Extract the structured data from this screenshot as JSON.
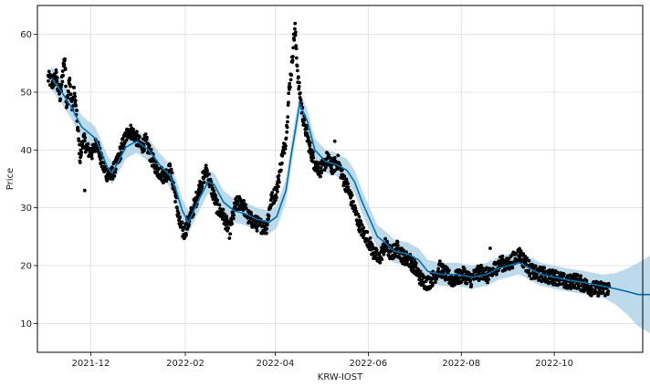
{
  "chart_data": {
    "type": "scatter",
    "xlabel": "KRW-IOST",
    "ylabel": "Price",
    "x_ticks": [
      "2021-12",
      "2022-02",
      "2022-04",
      "2022-06",
      "2022-08",
      "2022-10"
    ],
    "x_tick_dates": [
      "2021-12-01",
      "2022-02-01",
      "2022-04-01",
      "2022-06-01",
      "2022-08-01",
      "2022-10-01"
    ],
    "y_ticks": [
      10,
      20,
      30,
      40,
      50,
      60
    ],
    "xlim": [
      "2021-10-27",
      "2022-11-28"
    ],
    "ylim": [
      5,
      65
    ],
    "grid": true,
    "colors": {
      "actual": "#000000",
      "forecast": "#0072B2",
      "interval": "#A6CEE3"
    },
    "series": [
      {
        "kind": "forecast",
        "points": [
          [
            "2021-11-05",
            52.5
          ],
          [
            "2021-11-12",
            50.0
          ],
          [
            "2021-11-18",
            47.5
          ],
          [
            "2021-11-25",
            44.0
          ],
          [
            "2021-12-04",
            42.0
          ],
          [
            "2021-12-12",
            37.0
          ],
          [
            "2021-12-15",
            36.0
          ],
          [
            "2021-12-24",
            40.5
          ],
          [
            "2021-12-31",
            41.5
          ],
          [
            "2022-01-08",
            40.0
          ],
          [
            "2022-01-15",
            37.5
          ],
          [
            "2022-01-22",
            35.5
          ],
          [
            "2022-01-26",
            33.0
          ],
          [
            "2022-01-30",
            29.5
          ],
          [
            "2022-02-03",
            27.5
          ],
          [
            "2022-02-10",
            31.5
          ],
          [
            "2022-02-16",
            34.5
          ],
          [
            "2022-02-20",
            34.0
          ],
          [
            "2022-02-26",
            31.0
          ],
          [
            "2022-03-05",
            29.5
          ],
          [
            "2022-03-12",
            29.0
          ],
          [
            "2022-03-20",
            28.0
          ],
          [
            "2022-03-28",
            27.5
          ],
          [
            "2022-04-02",
            28.5
          ],
          [
            "2022-04-08",
            33.0
          ],
          [
            "2022-04-12",
            40.0
          ],
          [
            "2022-04-17",
            48.0
          ],
          [
            "2022-04-22",
            45.0
          ],
          [
            "2022-04-27",
            40.0
          ],
          [
            "2022-05-04",
            38.0
          ],
          [
            "2022-05-11",
            37.5
          ],
          [
            "2022-05-18",
            36.5
          ],
          [
            "2022-05-23",
            34.5
          ],
          [
            "2022-05-28",
            31.0
          ],
          [
            "2022-06-02",
            28.0
          ],
          [
            "2022-06-07",
            25.0
          ],
          [
            "2022-06-12",
            24.0
          ],
          [
            "2022-06-18",
            22.5
          ],
          [
            "2022-06-27",
            22.0
          ],
          [
            "2022-07-04",
            21.0
          ],
          [
            "2022-07-10",
            19.0
          ],
          [
            "2022-07-18",
            18.5
          ],
          [
            "2022-07-29",
            18.5
          ],
          [
            "2022-08-08",
            18.0
          ],
          [
            "2022-08-18",
            18.5
          ],
          [
            "2022-08-25",
            19.5
          ],
          [
            "2022-09-01",
            20.0
          ],
          [
            "2022-09-08",
            20.5
          ],
          [
            "2022-09-15",
            19.5
          ],
          [
            "2022-09-22",
            18.5
          ],
          [
            "2022-10-01",
            18.0
          ],
          [
            "2022-10-10",
            17.5
          ],
          [
            "2022-10-22",
            17.0
          ],
          [
            "2022-11-01",
            16.5
          ],
          [
            "2022-11-10",
            16.0
          ],
          [
            "2022-11-18",
            15.5
          ],
          [
            "2022-11-25",
            15.0
          ],
          [
            "2022-12-05",
            15.0
          ]
        ]
      },
      {
        "kind": "interval_width",
        "points": [
          [
            "2021-11-05",
            2.0
          ],
          [
            "2022-11-02",
            2.0
          ],
          [
            "2022-11-10",
            2.7
          ],
          [
            "2022-11-18",
            4.0
          ],
          [
            "2022-11-25",
            5.5
          ],
          [
            "2022-12-05",
            7.0
          ]
        ]
      },
      {
        "kind": "actual",
        "points": [
          [
            "2021-11-03",
            52.5
          ],
          [
            "2021-11-06",
            51.5
          ],
          [
            "2021-11-08",
            53.0
          ],
          [
            "2021-11-11",
            49.0
          ],
          [
            "2021-11-13",
            54.5
          ],
          [
            "2021-11-14",
            56.0
          ],
          [
            "2021-11-15",
            48.0
          ],
          [
            "2021-11-17",
            52.0
          ],
          [
            "2021-11-19",
            47.0
          ],
          [
            "2021-11-20",
            50.5
          ],
          [
            "2021-11-22",
            45.0
          ],
          [
            "2021-11-24",
            38.5
          ],
          [
            "2021-11-26",
            42.0
          ],
          [
            "2021-11-29",
            40.0
          ],
          [
            "2021-12-02",
            39.5
          ],
          [
            "2021-12-05",
            41.5
          ],
          [
            "2021-12-08",
            38.0
          ],
          [
            "2021-12-11",
            36.0
          ],
          [
            "2021-12-14",
            35.5
          ],
          [
            "2021-12-18",
            37.5
          ],
          [
            "2021-12-22",
            41.0
          ],
          [
            "2021-12-26",
            43.5
          ],
          [
            "2021-12-30",
            42.5
          ],
          [
            "2022-01-03",
            40.5
          ],
          [
            "2022-01-06",
            41.5
          ],
          [
            "2022-01-10",
            38.5
          ],
          [
            "2022-01-14",
            36.5
          ],
          [
            "2022-01-18",
            35.5
          ],
          [
            "2022-01-22",
            36.5
          ],
          [
            "2022-01-25",
            33.0
          ],
          [
            "2022-01-28",
            27.5
          ],
          [
            "2022-01-31",
            25.5
          ],
          [
            "2022-02-03",
            27.5
          ],
          [
            "2022-02-07",
            30.5
          ],
          [
            "2022-02-11",
            34.0
          ],
          [
            "2022-02-15",
            36.5
          ],
          [
            "2022-02-18",
            33.5
          ],
          [
            "2022-02-22",
            30.0
          ],
          [
            "2022-02-26",
            28.5
          ],
          [
            "2022-03-02",
            26.0
          ],
          [
            "2022-03-06",
            30.5
          ],
          [
            "2022-03-10",
            31.0
          ],
          [
            "2022-03-14",
            28.5
          ],
          [
            "2022-03-18",
            27.5
          ],
          [
            "2022-03-22",
            27.0
          ],
          [
            "2022-03-26",
            26.5
          ],
          [
            "2022-03-29",
            31.0
          ],
          [
            "2022-04-02",
            33.0
          ],
          [
            "2022-04-05",
            38.0
          ],
          [
            "2022-04-08",
            42.0
          ],
          [
            "2022-04-10",
            50.0
          ],
          [
            "2022-04-12",
            55.0
          ],
          [
            "2022-04-13",
            59.0
          ],
          [
            "2022-04-14",
            61.0
          ],
          [
            "2022-04-16",
            52.0
          ],
          [
            "2022-04-19",
            46.0
          ],
          [
            "2022-04-23",
            41.0
          ],
          [
            "2022-04-27",
            37.5
          ],
          [
            "2022-05-01",
            36.5
          ],
          [
            "2022-05-05",
            38.5
          ],
          [
            "2022-05-08",
            37.0
          ],
          [
            "2022-05-12",
            38.0
          ],
          [
            "2022-05-15",
            35.5
          ],
          [
            "2022-05-19",
            33.0
          ],
          [
            "2022-05-22",
            30.5
          ],
          [
            "2022-05-25",
            28.0
          ],
          [
            "2022-05-28",
            26.0
          ],
          [
            "2022-06-01",
            24.5
          ],
          [
            "2022-06-04",
            22.5
          ],
          [
            "2022-06-08",
            21.0
          ],
          [
            "2022-06-12",
            23.5
          ],
          [
            "2022-06-16",
            22.0
          ],
          [
            "2022-06-20",
            23.0
          ],
          [
            "2022-06-24",
            21.5
          ],
          [
            "2022-06-28",
            21.0
          ],
          [
            "2022-07-02",
            19.5
          ],
          [
            "2022-07-06",
            17.5
          ],
          [
            "2022-07-10",
            17.0
          ],
          [
            "2022-07-14",
            18.0
          ],
          [
            "2022-07-18",
            19.5
          ],
          [
            "2022-07-22",
            18.5
          ],
          [
            "2022-07-26",
            17.5
          ],
          [
            "2022-07-30",
            18.0
          ],
          [
            "2022-08-03",
            18.5
          ],
          [
            "2022-08-07",
            17.5
          ],
          [
            "2022-08-11",
            18.5
          ],
          [
            "2022-08-15",
            19.0
          ],
          [
            "2022-08-19",
            18.0
          ],
          [
            "2022-08-23",
            19.5
          ],
          [
            "2022-08-27",
            20.5
          ],
          [
            "2022-08-31",
            20.0
          ],
          [
            "2022-09-04",
            21.0
          ],
          [
            "2022-09-08",
            22.0
          ],
          [
            "2022-09-12",
            20.5
          ],
          [
            "2022-09-16",
            19.0
          ],
          [
            "2022-09-20",
            18.5
          ],
          [
            "2022-09-24",
            18.5
          ],
          [
            "2022-09-28",
            18.0
          ],
          [
            "2022-10-02",
            18.0
          ],
          [
            "2022-10-06",
            17.5
          ],
          [
            "2022-10-10",
            17.0
          ],
          [
            "2022-10-14",
            17.5
          ],
          [
            "2022-10-18",
            17.0
          ],
          [
            "2022-10-22",
            16.5
          ],
          [
            "2022-10-26",
            16.0
          ],
          [
            "2022-10-30",
            16.0
          ],
          [
            "2022-11-03",
            16.0
          ],
          [
            "2022-11-06",
            16.0
          ]
        ]
      }
    ]
  }
}
